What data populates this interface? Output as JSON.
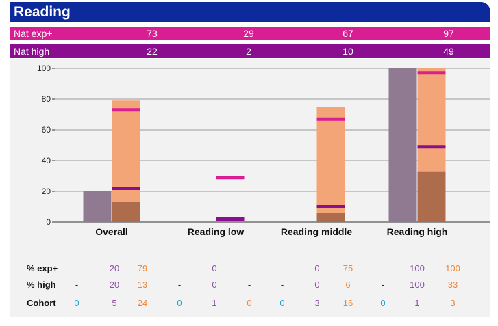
{
  "title": "Reading",
  "nat_rows": [
    {
      "label": "Nat exp+",
      "values": [
        "73",
        "29",
        "67",
        "97"
      ]
    },
    {
      "label": "Nat high",
      "values": [
        "22",
        "2",
        "10",
        "49"
      ]
    }
  ],
  "colors": {
    "header": "#0d2a9c",
    "nat_exp": "#d91e93",
    "nat_high": "#8b0e91",
    "school_bar": "#8f7a92",
    "exp_bar": "#f4a577",
    "high_bar": "#ad6d4d",
    "cohort": "#1ea5d6",
    "purple_text": "#8e4fa8",
    "orange_text": "#ef8536"
  },
  "chart_data": {
    "type": "bar",
    "categories": [
      "Overall",
      "Reading low",
      "Reading middle",
      "Reading high"
    ],
    "ylim": [
      0,
      100
    ],
    "yticks": [
      "0",
      "20",
      "40",
      "60",
      "80",
      "100"
    ],
    "grid": true,
    "series": [
      {
        "values": [
          20,
          0,
          0,
          100
        ]
      },
      {
        "values": [
          79,
          0,
          75,
          100
        ]
      },
      {
        "values": [
          13,
          0,
          6,
          33
        ]
      },
      {
        "values": [
          73,
          29,
          67,
          97
        ]
      },
      {
        "values": [
          22,
          2,
          10,
          49
        ]
      }
    ]
  },
  "stats": {
    "rows": [
      {
        "label": "% exp+",
        "cells": [
          "-",
          "20",
          "79",
          "-",
          "0",
          "-",
          "-",
          "0",
          "75",
          "-",
          "100",
          "100"
        ]
      },
      {
        "label": "% high",
        "cells": [
          "-",
          "20",
          "13",
          "-",
          "0",
          "-",
          "-",
          "0",
          "6",
          "-",
          "100",
          "33"
        ]
      },
      {
        "label": "Cohort",
        "cells": [
          "0",
          "5",
          "24",
          "0",
          "1",
          "0",
          "0",
          "3",
          "16",
          "0",
          "1",
          "3"
        ]
      }
    ]
  }
}
